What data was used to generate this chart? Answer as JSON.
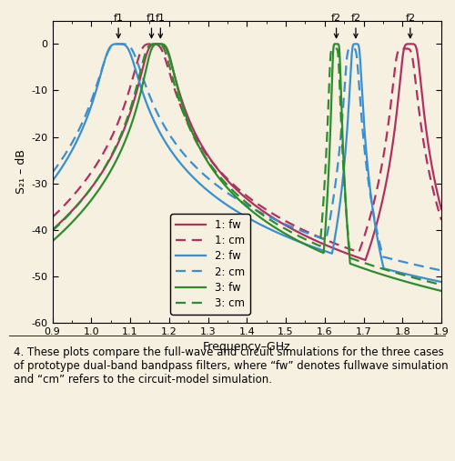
{
  "bg_color": "#f5f0e0",
  "plot_bg_color": "#f5f0e0",
  "xlim": [
    0.9,
    1.9
  ],
  "ylim": [
    -60,
    5
  ],
  "xticks": [
    0.9,
    1.0,
    1.1,
    1.2,
    1.3,
    1.4,
    1.5,
    1.6,
    1.7,
    1.8,
    1.9
  ],
  "yticks": [
    0,
    -10,
    -20,
    -30,
    -40,
    -50,
    -60
  ],
  "xlabel": "Frequency–GHz",
  "ylabel_text": "S₂₁ – dB",
  "colors": {
    "case1": "#b03060",
    "case2": "#3a8fd0",
    "case3": "#2e8c2e"
  },
  "caption_num": "4.",
  "caption_body": " These plots compare the full-wave and circuit simulations for the three cases of prototype dual-band bandpass filters, where “fw” denotes fullwave simulation and “cm” refers to the circuit-model simulation."
}
